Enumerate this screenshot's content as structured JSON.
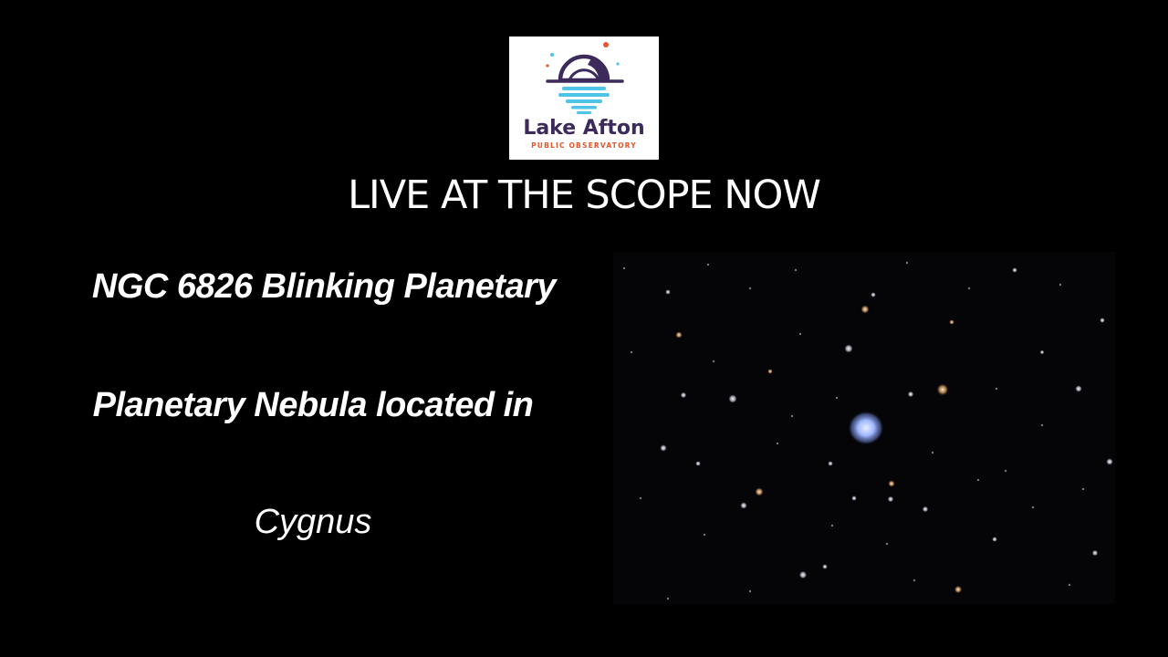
{
  "logo": {
    "name": "Lake Afton",
    "subtitle": "PUBLIC OBSERVATORY",
    "icon": "observatory-dome-logo",
    "colors": {
      "purple": "#3b2a5a",
      "orange": "#e4572e",
      "water": "#4fc3e8"
    }
  },
  "headline": "LIVE AT THE SCOPE NOW",
  "object": {
    "name": "NGC 6826 Blinking Planetary",
    "type": "Planetary Nebula located in",
    "constellation": "Cygnus"
  },
  "image": {
    "icon": "star-field-photo",
    "nebula_color": "#9fb7ff"
  }
}
